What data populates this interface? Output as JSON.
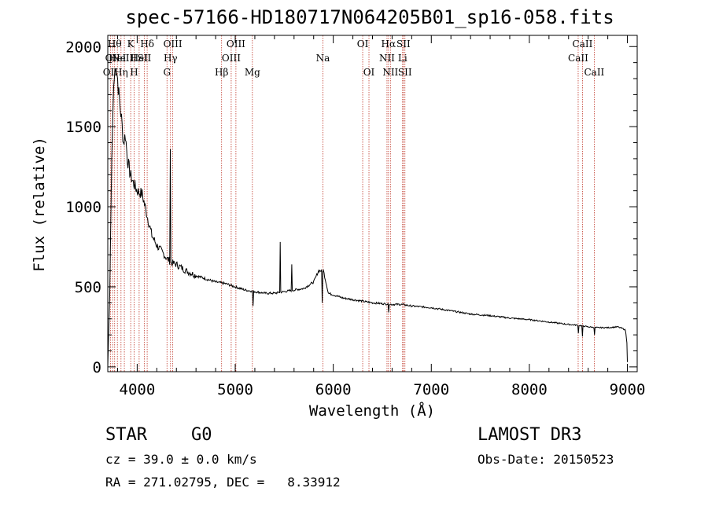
{
  "chart_data": {
    "type": "line",
    "title": "spec-57166-HD180717N064205B01_sp16-058.fits",
    "xlabel": "Wavelength (Å)",
    "ylabel": "Flux (relative)",
    "xlim": [
      3700,
      9100
    ],
    "ylim": [
      -30,
      2070
    ],
    "xticks": [
      4000,
      5000,
      6000,
      7000,
      8000,
      9000
    ],
    "yticks": [
      0,
      500,
      1000,
      1500,
      2000
    ],
    "series": [
      {
        "name": "spectrum",
        "x": [
          3700,
          3720,
          3740,
          3760,
          3780,
          3800,
          3820,
          3840,
          3860,
          3880,
          3900,
          3930,
          3960,
          4000,
          4050,
          4100,
          4150,
          4200,
          4250,
          4300,
          4350,
          4400,
          4450,
          4500,
          4600,
          4700,
          4800,
          4900,
          5000,
          5100,
          5200,
          5300,
          5400,
          5500,
          5600,
          5700,
          5800,
          5850,
          5900,
          5950,
          6000,
          6100,
          6200,
          6300,
          6400,
          6500,
          6600,
          6700,
          6800,
          7000,
          7200,
          7400,
          7600,
          7800,
          8000,
          8200,
          8400,
          8500,
          8600,
          8700,
          8800,
          8900,
          8950,
          8980,
          8995,
          9000
        ],
        "y": [
          0,
          450,
          1300,
          1750,
          1900,
          1800,
          1650,
          1550,
          1400,
          1450,
          1300,
          1200,
          1150,
          1100,
          1080,
          950,
          820,
          760,
          720,
          680,
          650,
          640,
          620,
          600,
          570,
          550,
          530,
          520,
          500,
          480,
          470,
          460,
          460,
          470,
          480,
          490,
          530,
          600,
          600,
          460,
          450,
          430,
          420,
          410,
          400,
          395,
          390,
          390,
          380,
          370,
          350,
          330,
          320,
          305,
          295,
          280,
          265,
          260,
          250,
          245,
          245,
          250,
          240,
          230,
          150,
          30
        ]
      }
    ],
    "spikes": [
      {
        "x": 4340,
        "y": 1360
      },
      {
        "x": 5460,
        "y": 780
      },
      {
        "x": 5577,
        "y": 640
      }
    ],
    "dips": [
      {
        "x": 5180,
        "y": 380
      },
      {
        "x": 5890,
        "y": 400
      },
      {
        "x": 6563,
        "y": 340
      },
      {
        "x": 8498,
        "y": 210
      },
      {
        "x": 8542,
        "y": 190
      },
      {
        "x": 8662,
        "y": 200
      }
    ],
    "spectral_lines": [
      {
        "x": 3727,
        "label": "OII",
        "row": 2
      },
      {
        "x": 3750,
        "label": "OII",
        "row": 1
      },
      {
        "x": 3770,
        "label": "Hθ",
        "row": 0
      },
      {
        "x": 3798,
        "label": "HeI",
        "row": 1
      },
      {
        "x": 3835,
        "label": "Hη",
        "row": 2
      },
      {
        "x": 3869,
        "label": "NeIII",
        "row": 1
      },
      {
        "x": 3934,
        "label": "K",
        "row": 0
      },
      {
        "x": 3969,
        "label": "H",
        "row": 2
      },
      {
        "x": 4020,
        "label": "HeI",
        "row": 1
      },
      {
        "x": 4072,
        "label": "SII",
        "row": 1
      },
      {
        "x": 4102,
        "label": "Hδ",
        "row": 0
      },
      {
        "x": 4304,
        "label": "G",
        "row": 2
      },
      {
        "x": 4340,
        "label": "Hγ",
        "row": 1
      },
      {
        "x": 4363,
        "label": "OIII",
        "row": 0
      },
      {
        "x": 4861,
        "label": "Hβ",
        "row": 2
      },
      {
        "x": 4959,
        "label": "OIII",
        "row": 1
      },
      {
        "x": 5007,
        "label": "OIII",
        "row": 0
      },
      {
        "x": 5175,
        "label": "Mg",
        "row": 2
      },
      {
        "x": 5894,
        "label": "Na",
        "row": 1
      },
      {
        "x": 6300,
        "label": "OI",
        "row": 0
      },
      {
        "x": 6364,
        "label": "OI",
        "row": 2
      },
      {
        "x": 6548,
        "label": "NII",
        "row": 1
      },
      {
        "x": 6563,
        "label": "Hα",
        "row": 0
      },
      {
        "x": 6583,
        "label": "NII",
        "row": 2
      },
      {
        "x": 6707,
        "label": "Li",
        "row": 1
      },
      {
        "x": 6716,
        "label": "SII",
        "row": 0
      },
      {
        "x": 6731,
        "label": "SII",
        "row": 2
      },
      {
        "x": 8498,
        "label": "CaII",
        "row": 1
      },
      {
        "x": 8542,
        "label": "CaII",
        "row": 0
      },
      {
        "x": 8662,
        "label": "CaII",
        "row": 2
      }
    ]
  },
  "info": {
    "object_class": "STAR",
    "subclass": "G0",
    "survey": "LAMOST DR3",
    "redshift": "cz = 39.0 ± 0.0 km/s",
    "obs_date": "Obs-Date: 20150523",
    "coords": "RA = 271.02795, DEC =   8.33912"
  }
}
